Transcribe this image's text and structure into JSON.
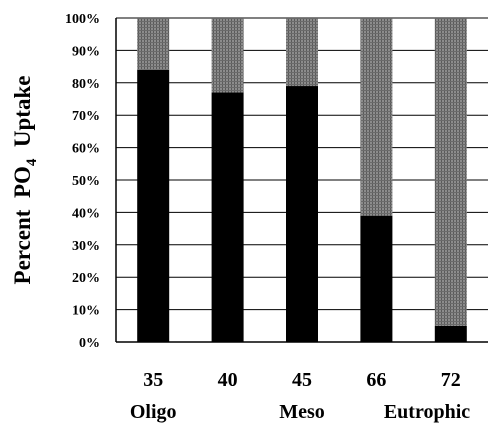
{
  "chart_data": {
    "type": "bar",
    "stacked": true,
    "categories": [
      "35",
      "40",
      "45",
      "66",
      "72"
    ],
    "category_sublabels": [
      "Oligo",
      "",
      "Meso",
      "",
      "Eutrophic"
    ],
    "series": [
      {
        "values": [
          84,
          77,
          79,
          39,
          5
        ],
        "color": "#000000"
      },
      {
        "values": [
          16,
          23,
          21,
          61,
          95
        ],
        "color": "#7a7a7a"
      }
    ],
    "ylabel": {
      "main": "Percent  PO",
      "sub": "4",
      "tail": "  Uptake"
    },
    "ylim": [
      0,
      100
    ],
    "yticks": [
      "0%",
      "10%",
      "20%",
      "30%",
      "40%",
      "50%",
      "60%",
      "70%",
      "80%",
      "90%",
      "100%"
    ],
    "grid": true
  }
}
